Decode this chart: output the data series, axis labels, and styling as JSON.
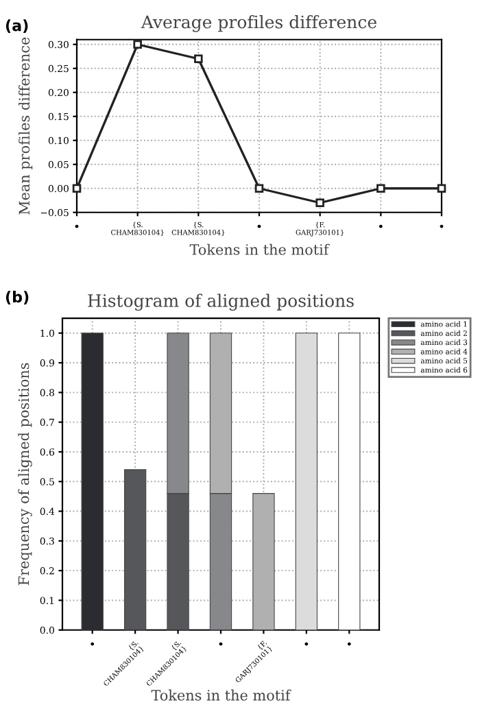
{
  "chart_data": [
    {
      "type": "line",
      "title": "Average profiles difference",
      "xlabel": "Tokens in the motif",
      "ylabel": "Mean profiles difference",
      "categories": [
        "•",
        "{S.\nCHAM830104}",
        "{S.\nCHAM830104}",
        "•",
        "{F.\nGARJ730101}",
        "•",
        "•"
      ],
      "series": [
        {
          "color": "#222222",
          "values": [
            0.0,
            0.3,
            0.27,
            0.0,
            -0.03,
            0.0,
            0.0
          ]
        }
      ],
      "ylim": [
        -0.05,
        0.31
      ],
      "yticks": [
        {
          "value": -0.05,
          "label": "−0.05"
        },
        {
          "value": 0.0,
          "label": "0.00"
        },
        {
          "value": 0.05,
          "label": "0.05"
        },
        {
          "value": 0.1,
          "label": "0.10"
        },
        {
          "value": 0.15,
          "label": "0.15"
        },
        {
          "value": 0.2,
          "label": "0.20"
        },
        {
          "value": 0.25,
          "label": "0.25"
        },
        {
          "value": 0.3,
          "label": "0.30"
        }
      ],
      "grid": true,
      "marker": "square",
      "line_style": "solid",
      "annotations": [
        "(a)"
      ]
    },
    {
      "type": "bar",
      "stacked": true,
      "title": "Histogram of aligned positions",
      "xlabel": "Tokens in the motif",
      "ylabel": "Frequency of aligned positions",
      "categories": [
        "•",
        "{S.\nCHAM830104}",
        "{S.\nCHAM830104}",
        "•",
        "{F.\nGARJ730101}",
        "•",
        "•"
      ],
      "series": [
        {
          "name": "amino acid 1",
          "color": "#2a2c31",
          "values": [
            1.0,
            null,
            null,
            null,
            null,
            null,
            null
          ]
        },
        {
          "name": "amino acid 2",
          "color": "#55575b",
          "values": [
            null,
            0.54,
            0.46,
            null,
            null,
            null,
            null
          ]
        },
        {
          "name": "amino acid 3",
          "color": "#87888b",
          "values": [
            null,
            null,
            0.54,
            0.46,
            null,
            null,
            null
          ]
        },
        {
          "name": "amino acid 4",
          "color": "#b0b0b0",
          "values": [
            null,
            null,
            null,
            0.54,
            0.46,
            null,
            null
          ]
        },
        {
          "name": "amino acid 5",
          "color": "#dcdcdc",
          "values": [
            null,
            null,
            null,
            null,
            null,
            1.0,
            null
          ]
        },
        {
          "name": "amino acid 6",
          "color": "#ffffff",
          "values": [
            null,
            null,
            null,
            null,
            null,
            null,
            1.0
          ]
        }
      ],
      "ylim": [
        0,
        1.05
      ],
      "yticks": [
        {
          "value": 0,
          "label": "0.0"
        },
        {
          "value": 0.1,
          "label": "0.1"
        },
        {
          "value": 0.2,
          "label": "0.2"
        },
        {
          "value": 0.3,
          "label": "0.3"
        },
        {
          "value": 0.4,
          "label": "0.4"
        },
        {
          "value": 0.5,
          "label": "0.5"
        },
        {
          "value": 0.6,
          "label": "0.6"
        },
        {
          "value": 0.7,
          "label": "0.7"
        },
        {
          "value": 0.8,
          "label": "0.8"
        },
        {
          "value": 0.9,
          "label": "0.9"
        },
        {
          "value": 1.0,
          "label": "1.0"
        }
      ],
      "grid": true,
      "legend": "top right",
      "annotations": [
        "(b)"
      ]
    }
  ]
}
